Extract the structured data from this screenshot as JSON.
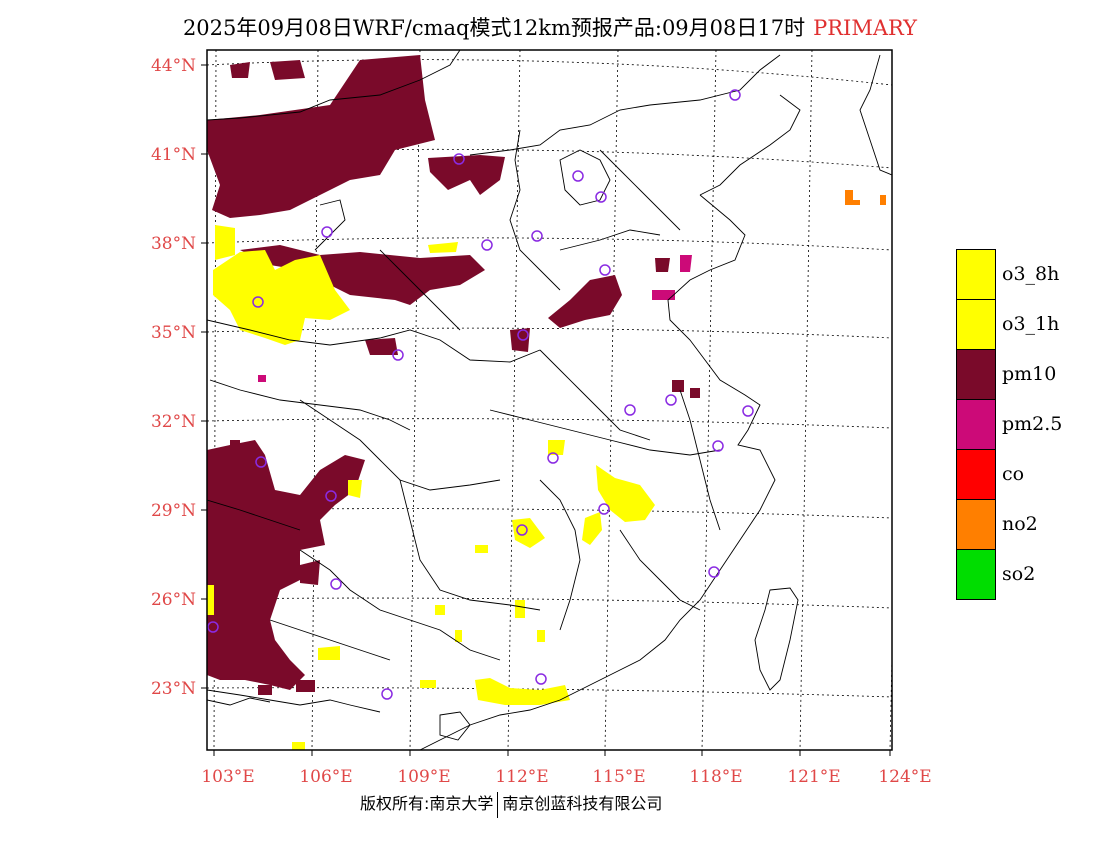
{
  "title": {
    "main": "2025年09月08日WRF/cmaq模式12km预报产品:09月08日17时",
    "tag": "PRIMARY"
  },
  "axes": {
    "lat_labels": [
      "44°N",
      "41°N",
      "38°N",
      "35°N",
      "32°N",
      "29°N",
      "26°N",
      "23°N"
    ],
    "lon_labels": [
      "103°E",
      "106°E",
      "109°E",
      "112°E",
      "115°E",
      "118°E",
      "121°E",
      "124°E"
    ]
  },
  "legend": [
    {
      "label": "o3_8h",
      "color": "#ffff00"
    },
    {
      "label": "o3_1h",
      "color": "#ffff00"
    },
    {
      "label": "pm10",
      "color": "#7a0a2a"
    },
    {
      "label": "pm2.5",
      "color": "#cc0a78"
    },
    {
      "label": "co",
      "color": "#ff0000"
    },
    {
      "label": "no2",
      "color": "#ff7f00"
    },
    {
      "label": "so2",
      "color": "#00dd00"
    }
  ],
  "colors": {
    "axis_label": "#e04848",
    "station": "#8a2be2"
  },
  "footer": {
    "left": "版权所有:南京大学",
    "right": "南京创蓝科技有限公司"
  }
}
